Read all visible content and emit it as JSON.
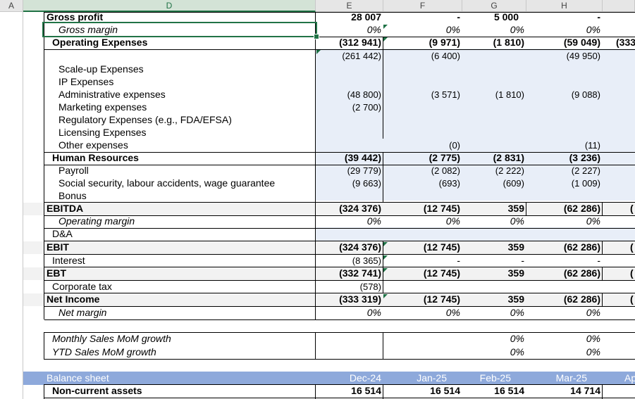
{
  "columns": [
    "A",
    "D",
    "E",
    "F",
    "G",
    "H"
  ],
  "rows": [
    {
      "label": "Gross profit",
      "e": "28 007",
      "f": "-",
      "g": "5 000",
      "h": "-",
      "style": "b"
    },
    {
      "label": "Gross margin",
      "e": "0%",
      "f": "0%",
      "g": "0%",
      "h": "0%",
      "style": "i"
    },
    {
      "label": "Operating Expenses",
      "e": "(312 941)",
      "f": "(9 971)",
      "g": "(1 810)",
      "h": "(59 049)",
      "i": "(333",
      "style": "b"
    },
    {
      "label": "",
      "e": "(261 442)",
      "f": "(6 400)",
      "g": "",
      "h": "(49 950)"
    },
    {
      "label": "Scale-up Expenses",
      "e": "",
      "f": "",
      "g": "",
      "h": ""
    },
    {
      "label": "IP Expenses",
      "e": "",
      "f": "",
      "g": "",
      "h": ""
    },
    {
      "label": "Administrative expenses",
      "e": "(48 800)",
      "f": "(3 571)",
      "g": "(1 810)",
      "h": "(9 088)"
    },
    {
      "label": "Marketing expenses",
      "e": "(2 700)",
      "f": "",
      "g": "",
      "h": ""
    },
    {
      "label": "Regulatory Expenses (e.g., FDA/EFSA)",
      "e": "",
      "f": "",
      "g": "",
      "h": ""
    },
    {
      "label": "Licensing Expenses",
      "e": "",
      "f": "",
      "g": "",
      "h": ""
    },
    {
      "label": "Other expenses",
      "e": "",
      "f": "(0)",
      "g": "",
      "h": "(11)"
    },
    {
      "label": "Human Resources",
      "e": "(39 442)",
      "f": "(2 775)",
      "g": "(2 831)",
      "h": "(3 236)",
      "style": "b"
    },
    {
      "label": "Payroll",
      "e": "(29 779)",
      "f": "(2 082)",
      "g": "(2 222)",
      "h": "(2 227)"
    },
    {
      "label": "Social security, labour accidents, wage guarantee",
      "e": "(9 663)",
      "f": "(693)",
      "g": "(609)",
      "h": "(1 009)"
    },
    {
      "label": "Bonus",
      "e": "",
      "f": "",
      "g": "",
      "h": ""
    },
    {
      "label": "EBITDA",
      "e": "(324 376)",
      "f": "(12 745)",
      "g": "359",
      "h": "(62 286)",
      "i": "(",
      "style": "b"
    },
    {
      "label": "Operating margin",
      "e": "0%",
      "f": "0%",
      "g": "0%",
      "h": "0%",
      "style": "i"
    },
    {
      "label": "D&A",
      "e": "",
      "f": "",
      "g": "",
      "h": ""
    },
    {
      "label": "EBIT",
      "e": "(324 376)",
      "f": "(12 745)",
      "g": "359",
      "h": "(62 286)",
      "i": "(",
      "style": "b"
    },
    {
      "label": "Interest",
      "e": "(8 365)",
      "f": "-",
      "g": "-",
      "h": "-"
    },
    {
      "label": "EBT",
      "e": "(332 741)",
      "f": "(12 745)",
      "g": "359",
      "h": "(62 286)",
      "i": "(",
      "style": "b"
    },
    {
      "label": "Corporate tax",
      "e": "(578)",
      "f": "",
      "g": "",
      "h": ""
    },
    {
      "label": "Net Income",
      "e": "(333 319)",
      "f": "(12 745)",
      "g": "359",
      "h": "(62 286)",
      "i": "(",
      "style": "b"
    },
    {
      "label": "Net margin",
      "e": "0%",
      "f": "0%",
      "g": "0%",
      "h": "0%",
      "style": "i"
    },
    {
      "label": "Monthly Sales MoM growth",
      "e": "",
      "f": "",
      "g": "0%",
      "h": "0%",
      "style": "i"
    },
    {
      "label": "YTD Sales MoM growth",
      "e": "",
      "f": "",
      "g": "0%",
      "h": "0%",
      "style": "i"
    },
    {
      "label": "Balance sheet",
      "e": "Dec-24",
      "f": "Jan-25",
      "g": "Feb-25",
      "h": "Mar-25",
      "i": "Ap"
    },
    {
      "label": "Non-current assets",
      "e": "16 514",
      "f": "16 514",
      "g": "16 514",
      "h": "14 714",
      "style": "b"
    }
  ],
  "colors": {
    "selection": "#217346",
    "balance_header": "#8ea9db",
    "shade": "#e8eef8",
    "total_row": "#f2f2f2"
  }
}
